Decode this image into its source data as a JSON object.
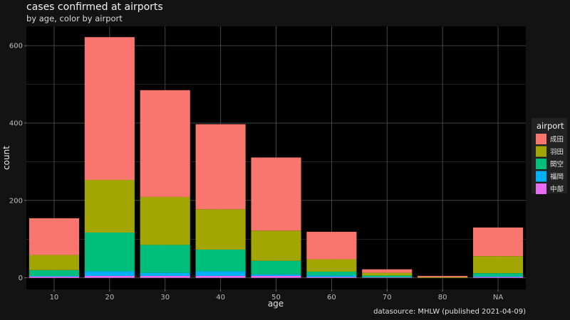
{
  "title": "cases confirmed at airports",
  "subtitle": "by age, color by airport",
  "caption": "datasource: MHLW (published 2021-04-09)",
  "colors": {
    "background": "#131313",
    "panel": "#000000",
    "grid": "#4d4d4d",
    "legend_bg": "#222222"
  },
  "chart_data": {
    "type": "bar",
    "stacked": true,
    "title": "cases confirmed at airports",
    "subtitle": "by age, color by airport",
    "xlabel": "age",
    "ylabel": "count",
    "ylim": [
      -30,
      650
    ],
    "yticks": [
      0,
      200,
      400,
      600
    ],
    "grid": true,
    "legend_title": "airport",
    "legend_position": "right",
    "categories": [
      "10",
      "20",
      "30",
      "40",
      "50",
      "60",
      "70",
      "80",
      "NA"
    ],
    "series": [
      {
        "name": "中部",
        "color": "#E76BF3",
        "values": [
          3,
          5,
          5,
          5,
          5,
          2,
          1,
          0,
          2
        ]
      },
      {
        "name": "福岡",
        "color": "#00B0F6",
        "values": [
          2,
          12,
          8,
          12,
          4,
          4,
          1,
          0,
          2
        ]
      },
      {
        "name": "関空",
        "color": "#00BF7D",
        "values": [
          15,
          100,
          72,
          56,
          35,
          10,
          4,
          0,
          8
        ]
      },
      {
        "name": "羽田",
        "color": "#A3A500",
        "values": [
          39,
          136,
          124,
          104,
          78,
          32,
          7,
          2,
          44
        ]
      },
      {
        "name": "成田",
        "color": "#F8766D",
        "values": [
          95,
          369,
          276,
          220,
          189,
          71,
          9,
          3,
          74
        ]
      }
    ]
  }
}
